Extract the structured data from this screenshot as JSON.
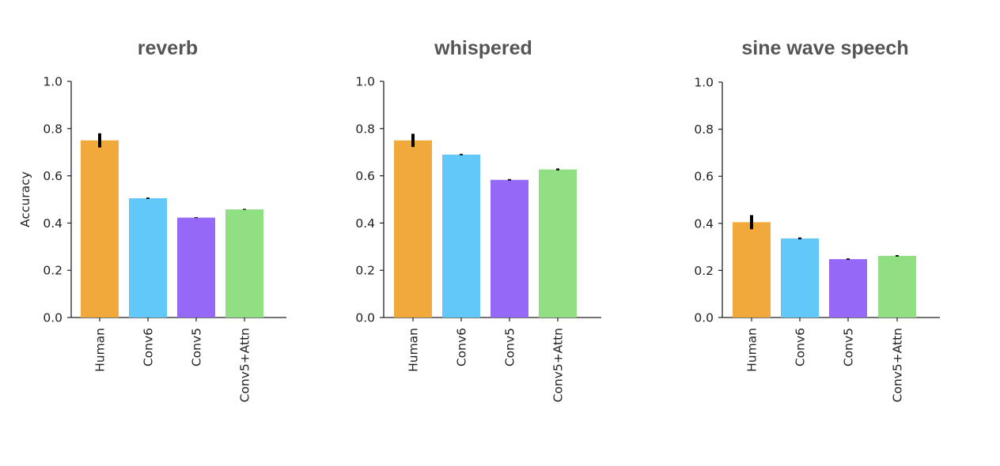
{
  "chart_data": [
    {
      "type": "bar",
      "title": "reverb",
      "ylabel": "Accuracy",
      "xlabel": "",
      "ylim": [
        0,
        1.0
      ],
      "yticks": [
        "0.0",
        "0.2",
        "0.4",
        "0.6",
        "0.8",
        "1.0"
      ],
      "categories": [
        "Human",
        "Conv6",
        "Conv5",
        "Conv5+Attn"
      ],
      "values": [
        0.75,
        0.505,
        0.423,
        0.458
      ],
      "errors": [
        0.03,
        0.003,
        0.002,
        0.002
      ],
      "colors": [
        "#f2a93b",
        "#62c8f9",
        "#9568f8",
        "#90df83"
      ],
      "grid": false,
      "legend": "none"
    },
    {
      "type": "bar",
      "title": "whispered",
      "ylabel": "",
      "xlabel": "",
      "ylim": [
        0,
        1.0
      ],
      "yticks": [
        "0.0",
        "0.2",
        "0.4",
        "0.6",
        "0.8",
        "1.0"
      ],
      "categories": [
        "Human",
        "Conv6",
        "Conv5",
        "Conv5+Attn"
      ],
      "values": [
        0.75,
        0.69,
        0.583,
        0.627
      ],
      "errors": [
        0.028,
        0.003,
        0.003,
        0.004
      ],
      "colors": [
        "#f2a93b",
        "#62c8f9",
        "#9568f8",
        "#90df83"
      ],
      "grid": false,
      "legend": "none"
    },
    {
      "type": "bar",
      "title": "sine wave speech",
      "ylabel": "",
      "xlabel": "",
      "ylim": [
        0,
        1.0
      ],
      "yticks": [
        "0.0",
        "0.2",
        "0.4",
        "0.6",
        "0.8",
        "1.0"
      ],
      "categories": [
        "Human",
        "Conv6",
        "Conv5",
        "Conv5+Attn"
      ],
      "values": [
        0.405,
        0.336,
        0.248,
        0.262
      ],
      "errors": [
        0.03,
        0.004,
        0.003,
        0.003
      ],
      "colors": [
        "#f2a93b",
        "#62c8f9",
        "#9568f8",
        "#90df83"
      ],
      "grid": false,
      "legend": "none"
    }
  ]
}
